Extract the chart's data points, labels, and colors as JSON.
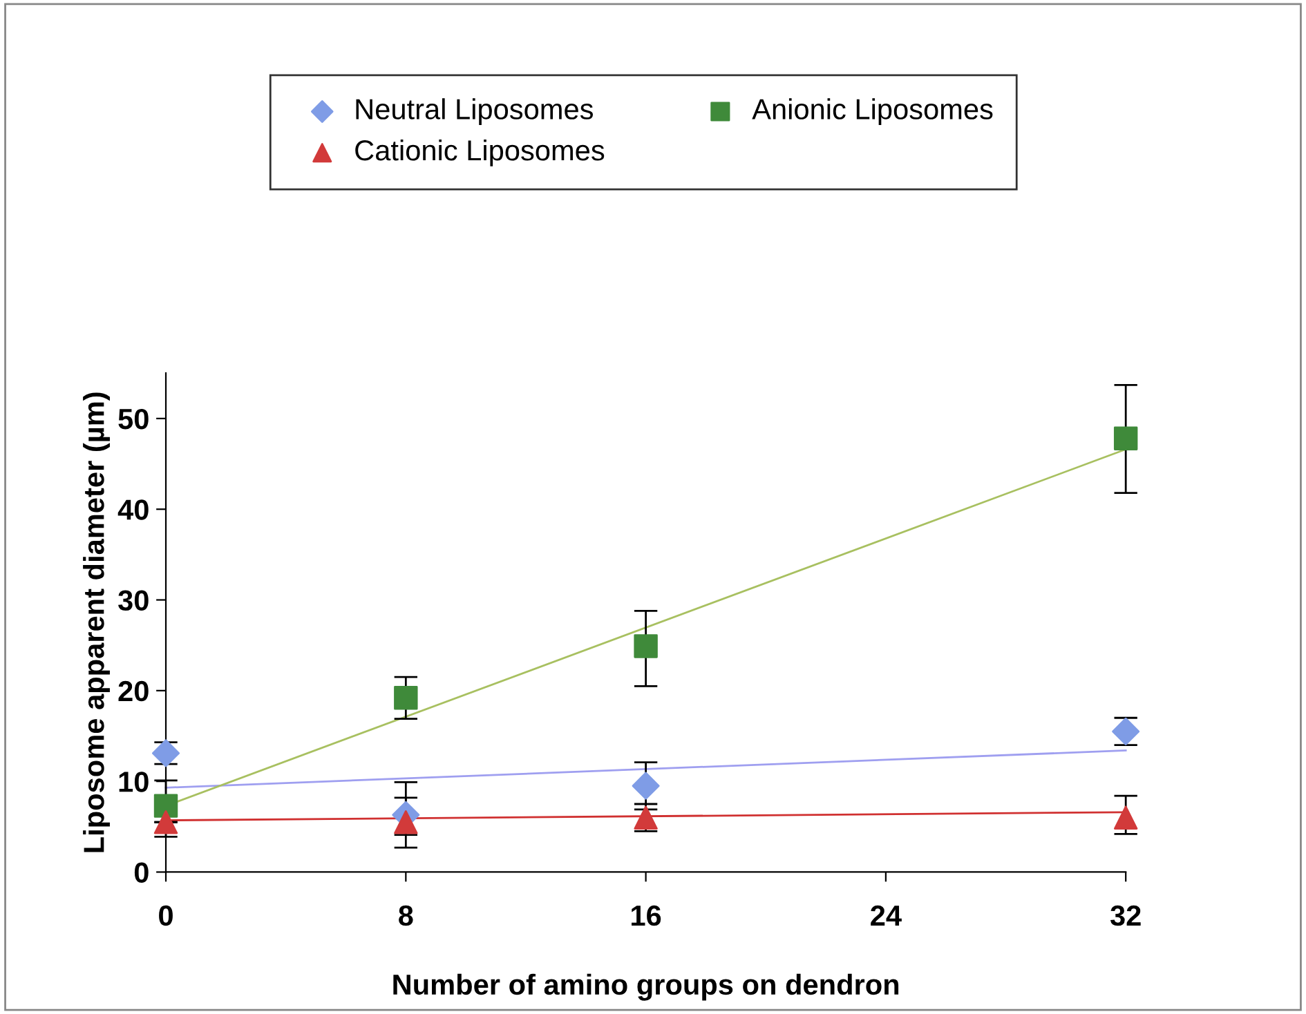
{
  "chart_data": {
    "type": "scatter",
    "xlabel": "Number of amino groups on dendron",
    "ylabel": "Liposome apparent diameter (µm)",
    "xlim": [
      0,
      32
    ],
    "xticks": [
      0,
      8,
      16,
      24,
      32
    ],
    "ylim": [
      0,
      55
    ],
    "yticks": [
      0,
      10,
      20,
      30,
      40,
      50
    ],
    "grid": false,
    "legend": "top",
    "series": [
      {
        "name": "Neutral Liposomes",
        "color": "#7f9ce6",
        "marker": "diamond",
        "x": [
          0,
          8,
          16,
          32
        ],
        "values": [
          13.1,
          6.3,
          9.5,
          15.5
        ],
        "errors": [
          1.2,
          3.6,
          2.6,
          1.5
        ]
      },
      {
        "name": "Anionic Liposomes",
        "color": "#3f8a3a",
        "marker": "square",
        "x": [
          0,
          8,
          16,
          32
        ],
        "values": [
          7.3,
          19.2,
          24.9,
          47.8
        ],
        "errors": [
          [
            3.9,
            10.1
          ],
          2.3,
          [
            20.5,
            28.8
          ],
          [
            41.8,
            53.7
          ]
        ]
      },
      {
        "name": "Cationic Liposomes",
        "color": "#d23a3a",
        "marker": "triangle",
        "x": [
          0,
          8,
          16,
          32
        ],
        "values": [
          5.5,
          5.5,
          6.0,
          6.0
        ],
        "errors": [
          null,
          [
            4.1,
            8.2
          ],
          1.5,
          [
            4.2,
            8.4
          ]
        ]
      },
      {
        "type": "line",
        "color": "#9f9ff0",
        "marker": "none",
        "x": [
          0,
          32
        ],
        "values": [
          9.3,
          13.4
        ]
      },
      {
        "type": "line",
        "color": "#a8c060",
        "marker": "none",
        "x": [
          0,
          32
        ],
        "values": [
          7.3,
          46.6
        ]
      },
      {
        "type": "line",
        "color": "#d03030",
        "marker": "none",
        "x": [
          0,
          32
        ],
        "values": [
          5.7,
          6.6
        ]
      }
    ]
  }
}
